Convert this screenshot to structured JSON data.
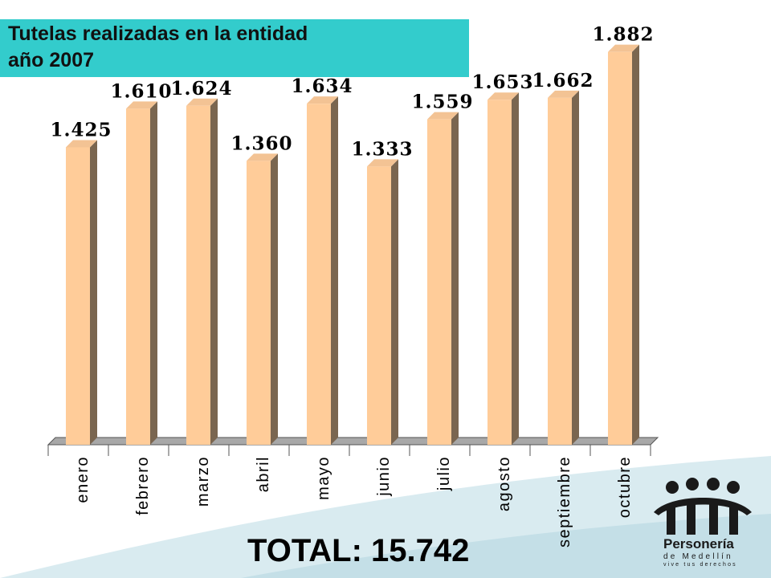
{
  "header": {
    "title_line1": "Tutelas realizadas en la entidad",
    "title_line2": "año 2007"
  },
  "total_label": "TOTAL: 15.742",
  "logo": {
    "name": "Personería",
    "subname": "de Medellín",
    "tagline": "vive tus derechos"
  },
  "colors": {
    "title_bg": "#33cccc",
    "bar_front": "#ffcc99",
    "bar_side": "#7a6650",
    "wave": "#cfe5ec"
  },
  "chart_data": {
    "type": "bar",
    "title": "Tutelas realizadas en la entidad año 2007",
    "xlabel": "",
    "ylabel": "",
    "ylim": [
      0,
      2000
    ],
    "grid": false,
    "legend": "none",
    "categories": [
      "enero",
      "febrero",
      "marzo",
      "abril",
      "mayo",
      "junio",
      "julio",
      "agosto",
      "septiembre",
      "octubre"
    ],
    "values": [
      1425,
      1610,
      1624,
      1360,
      1634,
      1333,
      1559,
      1653,
      1662,
      1882
    ],
    "value_labels": [
      "1.425",
      "1.610",
      "1.624",
      "1.360",
      "1.634",
      "1.333",
      "1.559",
      "1.653",
      "1.662",
      "1.882"
    ]
  }
}
